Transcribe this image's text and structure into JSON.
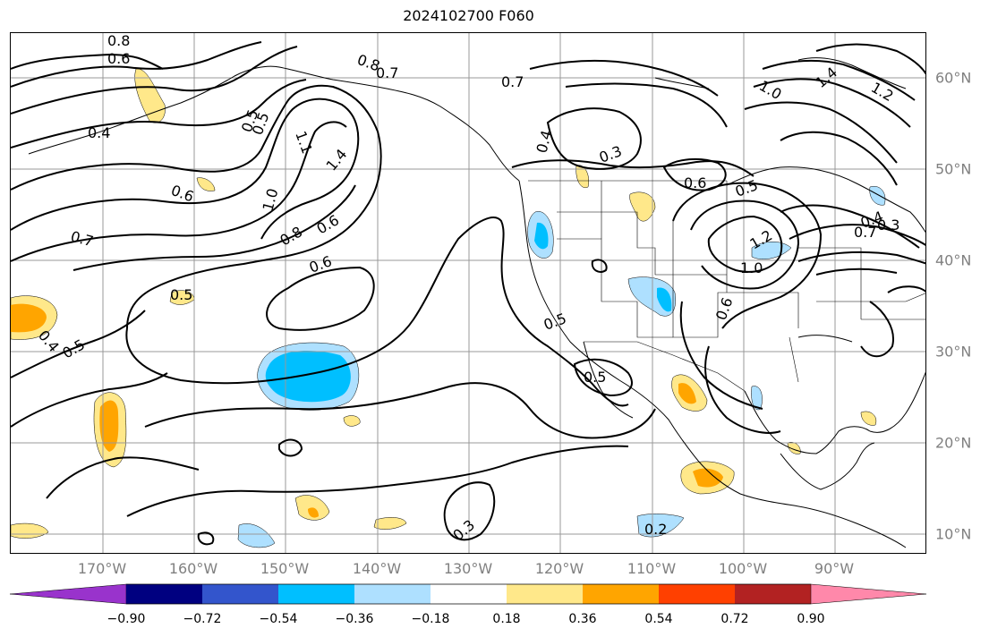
{
  "title": "2024102700 F060",
  "longitude_labels": [
    "170°W",
    "160°W",
    "150°W",
    "140°W",
    "130°W",
    "120°W",
    "110°W",
    "100°W",
    "90°W"
  ],
  "latitude_labels": [
    "60°N",
    "50°N",
    "40°N",
    "30°N",
    "20°N",
    "10°N"
  ],
  "colorbar": {
    "ticks": [
      "−0.90",
      "−0.72",
      "−0.54",
      "−0.36",
      "−0.18",
      "0.18",
      "0.36",
      "0.54",
      "0.72",
      "0.90"
    ],
    "colors": [
      "#9933cc",
      "#000080",
      "#3355cc",
      "#00bfff",
      "#aee0ff",
      "#ffffff",
      "#ffe88a",
      "#ffa500",
      "#ff4000",
      "#b22222",
      "#ff88aa"
    ]
  },
  "contour_labels": [
    "0.8",
    "0.6",
    "0.4",
    "0.5",
    "1.1",
    "1.4",
    "0.6",
    "1.0",
    "0.7",
    "0.8",
    "0.6",
    "0.6",
    "0.5",
    "0.4",
    "0.8",
    "0.7",
    "0.7",
    "0.4",
    "0.3",
    "0.6",
    "0.5",
    "1.0",
    "1.4",
    "1.2",
    "0.5",
    "0.5",
    "0.2",
    "0.3",
    "1.0",
    "1.2",
    "0.6",
    "0.7",
    "0.4",
    "0.3",
    "0.5",
    "0.5"
  ],
  "colors": {
    "land_outline": "#000000",
    "grid": "#999999",
    "contour": "#000000"
  }
}
